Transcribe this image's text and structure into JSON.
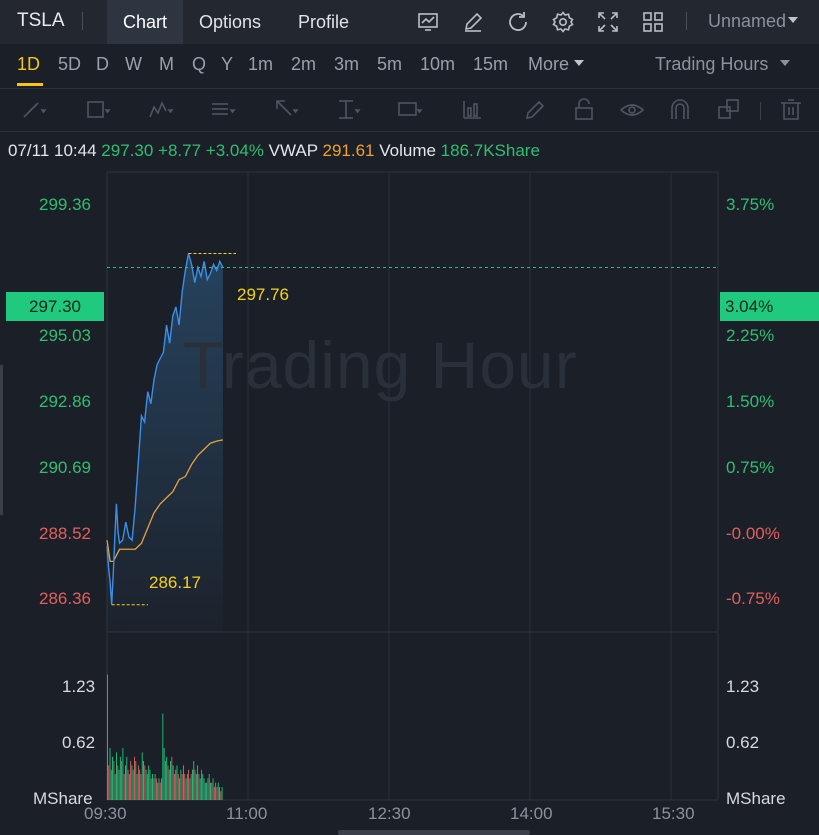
{
  "header": {
    "ticker": "TSLA",
    "tabs": [
      {
        "label": "Chart",
        "active": true
      },
      {
        "label": "Options",
        "active": false
      },
      {
        "label": "Profile",
        "active": false
      }
    ],
    "layout_name": "Unnamed",
    "icons": [
      "chart-settings-icon",
      "draw-icon",
      "refresh-icon",
      "settings-gear-icon",
      "fullscreen-icon",
      "grid-layout-icon"
    ]
  },
  "periods": {
    "items": [
      "1D",
      "5D",
      "D",
      "W",
      "M",
      "Q",
      "Y",
      "1m",
      "2m",
      "3m",
      "5m",
      "10m",
      "15m"
    ],
    "active": "1D",
    "more_label": "More",
    "hours_label": "Trading Hours"
  },
  "drawing_tools": [
    "trend-line-icon",
    "rectangle-icon",
    "pattern-icon",
    "fib-icon",
    "arrow-icon",
    "level-icon",
    "text-icon",
    "indicator-icon",
    "pen-icon",
    "lock-icon",
    "eye-icon",
    "magnet-icon",
    "layers-icon",
    "trash-icon"
  ],
  "info": {
    "datetime": "07/11 10:44",
    "price": "297.30",
    "change": "+8.77",
    "change_pct": "+3.04%",
    "vwap_label": "VWAP",
    "vwap_value": "291.61",
    "volume_label": "Volume",
    "volume_value": "186.7KShare"
  },
  "chart": {
    "watermark": "Trading Hour",
    "current_price_label": "297.30",
    "current_pct_label": "3.04%",
    "high_label": "297.76",
    "low_label": "286.17",
    "y_left": [
      {
        "label": "299.36",
        "color": "#2fbf71"
      },
      {
        "label": "295.03",
        "color": "#2fbf71"
      },
      {
        "label": "292.86",
        "color": "#2fbf71"
      },
      {
        "label": "290.69",
        "color": "#2fbf71"
      },
      {
        "label": "288.52",
        "color": "#e35f5f"
      },
      {
        "label": "286.36",
        "color": "#e35f5f"
      }
    ],
    "y_right": [
      {
        "label": "3.75%",
        "color": "#2fbf71"
      },
      {
        "label": "2.25%",
        "color": "#2fbf71"
      },
      {
        "label": "1.50%",
        "color": "#2fbf71"
      },
      {
        "label": "0.75%",
        "color": "#2fbf71"
      },
      {
        "label": "-0.00%",
        "color": "#e35f5f"
      },
      {
        "label": "-0.75%",
        "color": "#e35f5f"
      }
    ],
    "vol_left": [
      "1.23",
      "0.62",
      "MShare"
    ],
    "vol_right": [
      "1.23",
      "0.62",
      "MShare"
    ],
    "x_labels": [
      "09:30",
      "11:00",
      "12:30",
      "14:00",
      "15:30"
    ],
    "colors": {
      "up": "#1fca7e",
      "down": "#e35f5f",
      "price_line": "#3a8fe8",
      "vwap": "#e8a23a",
      "annotation": "#f5d21c"
    }
  },
  "chart_data": {
    "type": "line",
    "x_range": [
      "09:30",
      "16:00"
    ],
    "series": [
      {
        "name": "",
        "x": [
          "09:30",
          "09:31",
          "09:32",
          "09:33",
          "09:34",
          "09:35",
          "09:36",
          "09:37",
          "09:38",
          "09:40",
          "09:42",
          "09:44",
          "09:46",
          "09:48",
          "09:50",
          "09:52",
          "09:54",
          "09:56",
          "09:58",
          "10:00",
          "10:02",
          "10:04",
          "10:06",
          "10:08",
          "10:10",
          "10:12",
          "10:14",
          "10:16",
          "10:18",
          "10:20",
          "10:22",
          "10:24",
          "10:26",
          "10:28",
          "10:30",
          "10:32",
          "10:34",
          "10:36",
          "10:38",
          "10:40",
          "10:42",
          "10:44"
        ],
        "values": [
          288.1,
          287.4,
          286.9,
          286.17,
          287.2,
          288.4,
          289.5,
          288.6,
          288.2,
          288.3,
          288.9,
          288.4,
          288.3,
          289.4,
          290.9,
          292.4,
          292.2,
          293.2,
          292.8,
          293.6,
          294.1,
          294.3,
          294.5,
          295.4,
          294.8,
          295.7,
          296.0,
          295.4,
          296.5,
          297.2,
          297.76,
          297.4,
          296.8,
          297.3,
          297.0,
          297.5,
          296.9,
          297.1,
          297.4,
          297.2,
          297.5,
          297.3
        ]
      },
      {
        "name": "VWAP",
        "x": [
          "09:30",
          "09:32",
          "09:34",
          "09:36",
          "09:38",
          "09:40",
          "09:44",
          "09:48",
          "09:52",
          "09:56",
          "10:00",
          "10:04",
          "10:08",
          "10:12",
          "10:16",
          "10:20",
          "10:24",
          "10:28",
          "10:32",
          "10:36",
          "10:40",
          "10:44"
        ],
        "values": [
          288.3,
          287.6,
          287.6,
          287.8,
          288.0,
          288.0,
          288.0,
          288.0,
          288.2,
          288.7,
          289.2,
          289.5,
          289.7,
          289.9,
          290.3,
          290.4,
          290.8,
          291.1,
          291.3,
          291.5,
          291.57,
          291.61
        ]
      }
    ],
    "volume": {
      "unit": "MShare",
      "values": [
        1.45,
        0.4,
        0.6,
        0.35,
        0.5,
        0.45,
        0.3,
        0.55,
        0.4,
        0.35,
        0.5,
        0.45,
        0.6,
        0.3,
        0.4,
        0.5,
        0.35,
        0.3,
        0.45,
        0.4,
        0.35,
        0.5,
        0.45,
        0.3,
        0.4,
        0.35,
        0.3,
        0.55,
        0.45,
        0.4,
        0.35,
        0.3,
        0.4,
        0.35,
        0.25,
        0.3,
        0.25,
        0.3,
        0.25,
        0.2,
        0.25,
        0.2,
        0.25,
        1.0,
        0.6,
        0.45,
        0.5,
        0.4,
        0.35,
        0.45,
        0.5,
        0.4,
        0.3,
        0.35,
        0.4,
        0.3,
        0.25,
        0.35,
        0.3,
        0.4,
        0.3,
        0.25,
        0.3,
        0.35,
        0.25,
        0.3,
        0.35,
        0.45,
        0.35,
        0.3,
        0.4,
        0.3,
        0.25,
        0.35,
        0.3,
        0.25,
        0.2,
        0.2,
        0.25,
        0.3,
        0.2,
        0.2,
        0.25,
        0.15,
        0.2,
        0.15,
        0.2,
        0.15,
        0.1,
        0.15
      ],
      "up": [
        1,
        0,
        1,
        0,
        1,
        0,
        1,
        1,
        0,
        1,
        1,
        0,
        1,
        0,
        1,
        1,
        0,
        1,
        0,
        1,
        1,
        0,
        1,
        1,
        0,
        1,
        0,
        1,
        1,
        0,
        1,
        0,
        1,
        1,
        0,
        1,
        0,
        1,
        0,
        1,
        1,
        0,
        1,
        1,
        1,
        0,
        1,
        0,
        1,
        1,
        0,
        1,
        0,
        1,
        1,
        0,
        1,
        1,
        0,
        1,
        0,
        1,
        1,
        0,
        1,
        0,
        1,
        1,
        0,
        1,
        1,
        0,
        1,
        0,
        1,
        1,
        0,
        1,
        0,
        1,
        1,
        0,
        1,
        0,
        1,
        0,
        1,
        1,
        0,
        1
      ],
      "ylim": [
        0,
        1.85
      ]
    },
    "ylim": [
      285.27,
      300.45
    ],
    "high": 297.76,
    "low": 286.17,
    "grid": true
  }
}
